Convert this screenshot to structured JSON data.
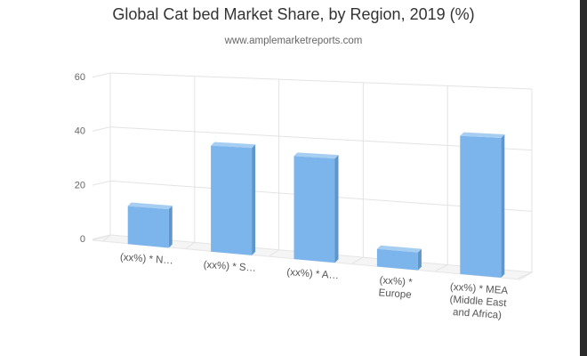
{
  "chart_data": {
    "type": "bar",
    "title": "Global Cat bed Market Share, by Region, 2019 (%)",
    "subtitle": "www.amplemarketreports.com",
    "categories": [
      "(xx%) * N...",
      "(xx%) * S...",
      "(xx%) * A...",
      "(xx%) * Europe",
      "(xx%) * MEA (Middle East and Africa)"
    ],
    "category_lines": [
      [
        "(xx%) * N…"
      ],
      [
        "(xx%) * S…"
      ],
      [
        "(xx%) * A…"
      ],
      [
        "(xx%) *",
        "Europe"
      ],
      [
        "(xx%) * MEA",
        "(Middle East",
        "and Africa)"
      ]
    ],
    "values": [
      14,
      38,
      36,
      6,
      46
    ],
    "ylim": [
      0,
      60
    ],
    "yticks": [
      0,
      20,
      40,
      60
    ],
    "grid": true,
    "legend": "none",
    "three_d": true,
    "bar_color": "#7cb5ec"
  }
}
